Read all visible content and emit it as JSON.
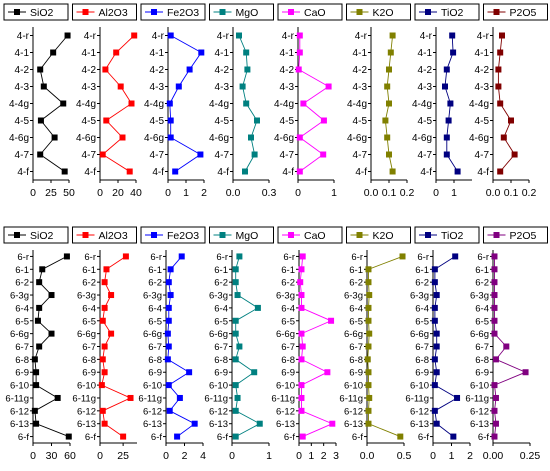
{
  "colors": {
    "SiO2": "#000000",
    "Al2O3": "#ff0000",
    "Fe2O3": "#0000ff",
    "MgO": "#008080",
    "CaO": "#ff00ff",
    "K2O": "#808000",
    "TiO2": "#000080",
    "P2O5": "#800000",
    "P2O5_bottom": "#800080"
  },
  "chart_data": [
    {
      "type": "line",
      "orientation": "vertical-profiles",
      "samples": [
        "4-r",
        "4-1",
        "4-2",
        "4-3",
        "4-4g",
        "4-5",
        "4-6g",
        "4-7",
        "4-f"
      ],
      "panels": [
        {
          "name": "SiO2",
          "xlim": [
            0,
            50
          ],
          "ticks": [
            "0",
            "25",
            "50"
          ],
          "tick_values": [
            0,
            25,
            50
          ],
          "values": [
            48,
            28,
            10,
            15,
            42,
            11,
            30,
            10,
            44
          ]
        },
        {
          "name": "Al2O3",
          "xlim": [
            0,
            40
          ],
          "ticks": [
            "0",
            "20",
            "40"
          ],
          "tick_values": [
            0,
            20,
            40
          ],
          "values": [
            38,
            18,
            6,
            23,
            35,
            7,
            25,
            3,
            33
          ]
        },
        {
          "name": "Fe2O3",
          "xlim": [
            0,
            2
          ],
          "ticks": [
            "0",
            "1",
            "2"
          ],
          "tick_values": [
            0,
            1,
            2
          ],
          "values": [
            0.15,
            1.85,
            1.2,
            0.6,
            0.1,
            0.15,
            0.15,
            1.8,
            0.4
          ]
        },
        {
          "name": "MgO",
          "xlim": [
            0,
            0.3
          ],
          "ticks": [
            "0.0",
            "0.3"
          ],
          "tick_values": [
            0,
            0.3
          ],
          "values": [
            0.05,
            0.11,
            0.12,
            0.08,
            0.11,
            0.2,
            0.15,
            0.18,
            0.1
          ]
        },
        {
          "name": "CaO",
          "xlim": [
            0,
            1
          ],
          "ticks": [
            "0",
            "1"
          ],
          "tick_values": [
            0,
            1
          ],
          "values": [
            0.05,
            0.05,
            0.02,
            0.85,
            0.15,
            0.72,
            0.05,
            0.7,
            0.05
          ]
        },
        {
          "name": "K2O",
          "xlim": [
            0,
            0.2
          ],
          "ticks": [
            "0.0",
            "0.1",
            "0.2"
          ],
          "tick_values": [
            0,
            0.1,
            0.2
          ],
          "values": [
            0.12,
            0.11,
            0.1,
            0.09,
            0.1,
            0.08,
            0.09,
            0.1,
            0.12
          ]
        },
        {
          "name": "TiO2",
          "xlim": [
            0,
            2
          ],
          "ticks": [
            "0",
            "1"
          ],
          "tick_values": [
            0,
            1
          ],
          "values": [
            0.9,
            0.95,
            0.6,
            0.5,
            0.8,
            0.7,
            0.6,
            0.6,
            1.2
          ]
        },
        {
          "name": "P2O5",
          "xlim": [
            0,
            0.2
          ],
          "ticks": [
            "0.0",
            "0.1",
            "0.2"
          ],
          "tick_values": [
            0,
            0.1,
            0.2
          ],
          "values": [
            0.05,
            0.04,
            0.03,
            0.03,
            0.04,
            0.1,
            0.06,
            0.12,
            0.04
          ]
        }
      ]
    },
    {
      "type": "line",
      "orientation": "vertical-profiles",
      "samples": [
        "6-r",
        "6-1",
        "6-2",
        "6-3g",
        "6-4",
        "6-5",
        "6-6g",
        "6-7",
        "6-8",
        "6-9",
        "6-10",
        "6-11g",
        "6-12",
        "6-13",
        "6-f"
      ],
      "panels": [
        {
          "name": "SiO2",
          "xlim": [
            0,
            60
          ],
          "ticks": [
            "0",
            "30",
            "60"
          ],
          "tick_values": [
            0,
            30,
            60
          ],
          "values": [
            55,
            15,
            10,
            30,
            10,
            8,
            30,
            10,
            3,
            5,
            5,
            40,
            3,
            5,
            58
          ]
        },
        {
          "name": "Al2O3",
          "xlim": [
            0,
            40
          ],
          "ticks": [
            "0",
            "25"
          ],
          "tick_values": [
            0,
            25
          ],
          "values": [
            28,
            7,
            5,
            12,
            5,
            3,
            12,
            5,
            3,
            5,
            2,
            33,
            3,
            5,
            25
          ]
        },
        {
          "name": "Fe2O3",
          "xlim": [
            0,
            4
          ],
          "ticks": [
            "0",
            "2",
            "4"
          ],
          "tick_values": [
            0,
            2,
            4
          ],
          "values": [
            1.7,
            0.5,
            0.3,
            0.5,
            0.3,
            0.3,
            0.2,
            0.3,
            0.2,
            2.5,
            0.3,
            1.5,
            0.4,
            3.1,
            1.2
          ]
        },
        {
          "name": "MgO",
          "xlim": [
            0,
            1
          ],
          "ticks": [
            "0",
            "1"
          ],
          "tick_values": [
            0,
            1
          ],
          "values": [
            0.2,
            0.1,
            0.1,
            0.15,
            0.7,
            0.1,
            0.1,
            0.2,
            0.1,
            0.6,
            0.1,
            0.15,
            0.1,
            0.75,
            0.1
          ]
        },
        {
          "name": "CaO",
          "xlim": [
            0,
            3
          ],
          "ticks": [
            "0",
            "1",
            "2",
            "3"
          ],
          "tick_values": [
            0,
            1,
            2,
            3
          ],
          "values": [
            0.3,
            0.2,
            0.1,
            0.2,
            0.2,
            2.6,
            0.2,
            0.3,
            0.2,
            2.3,
            0.2,
            0.2,
            0.2,
            2.7,
            0.3
          ]
        },
        {
          "name": "K2O",
          "xlim": [
            0,
            0.5
          ],
          "ticks": [
            "0.0",
            "0.5"
          ],
          "tick_values": [
            0,
            0.5
          ],
          "values": [
            0.48,
            0.02,
            0.02,
            0.03,
            0.02,
            0.02,
            0.03,
            0.02,
            0.01,
            0.02,
            0.02,
            0.03,
            0.02,
            0.02,
            0.45
          ]
        },
        {
          "name": "TiO2",
          "xlim": [
            0,
            2
          ],
          "ticks": [
            "0",
            "1",
            "2"
          ],
          "tick_values": [
            0,
            1,
            2
          ],
          "values": [
            1.2,
            0.1,
            0.1,
            0.2,
            0.1,
            0.1,
            0.2,
            0.2,
            0.1,
            0.2,
            0.1,
            1.3,
            0.1,
            0.2,
            1.1
          ]
        },
        {
          "name": "P2O5",
          "xlim": [
            0,
            0.25
          ],
          "ticks": [
            "0.00",
            "0.25"
          ],
          "tick_values": [
            0,
            0.25
          ],
          "values": [
            0.01,
            0.01,
            0.01,
            0.01,
            0.01,
            0.01,
            0.01,
            0.09,
            0.02,
            0.22,
            0.01,
            0.02,
            0.01,
            0.02,
            0.01
          ]
        }
      ]
    }
  ]
}
